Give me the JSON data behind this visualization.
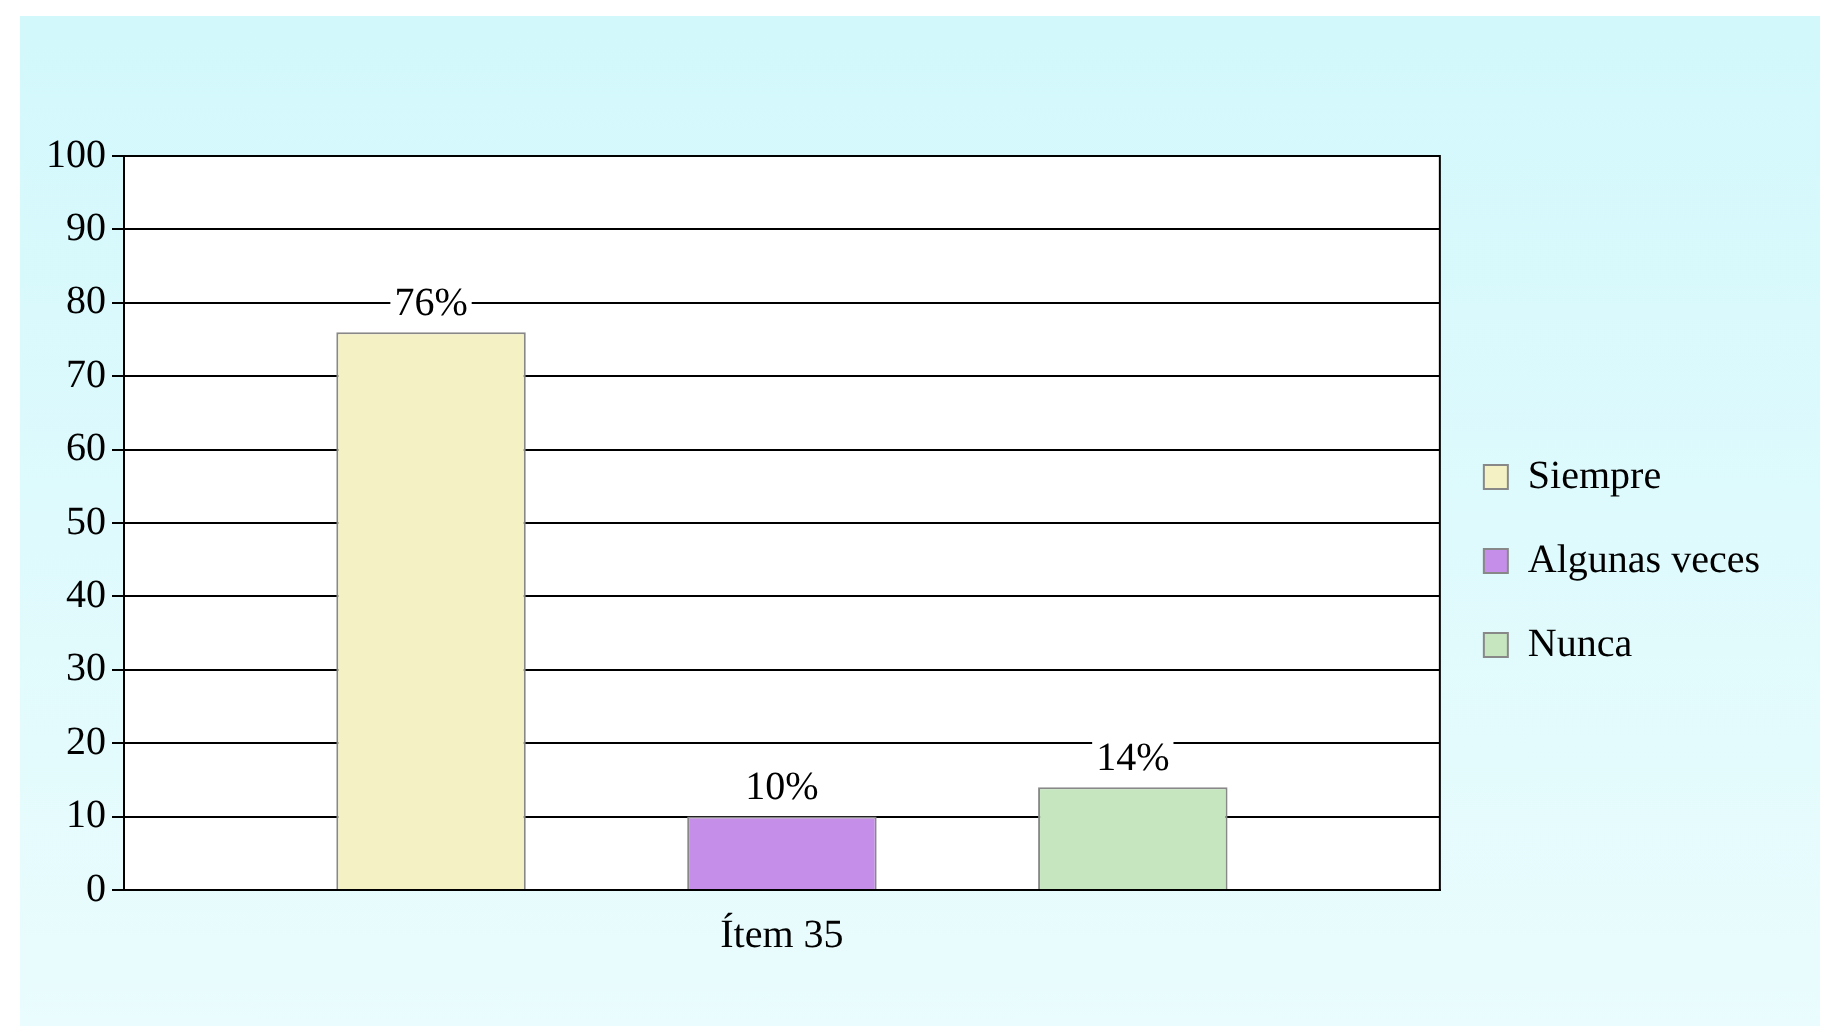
{
  "chart_data": {
    "type": "bar",
    "categories": [
      "Ítem 35"
    ],
    "series": [
      {
        "name": "Siempre",
        "color": "#f4f2c4",
        "values": [
          76
        ],
        "value_labels": [
          "76%"
        ]
      },
      {
        "name": "Algunas veces",
        "color": "#c58ee8",
        "values": [
          10
        ],
        "value_labels": [
          "10%"
        ]
      },
      {
        "name": "Nunca",
        "color": "#c6e6c0",
        "values": [
          14
        ],
        "value_labels": [
          "14%"
        ]
      }
    ],
    "ylim": [
      0,
      100
    ],
    "yticks": [
      0,
      10,
      20,
      30,
      40,
      50,
      60,
      70,
      80,
      90,
      100
    ],
    "grid": "y",
    "legend": "right"
  }
}
